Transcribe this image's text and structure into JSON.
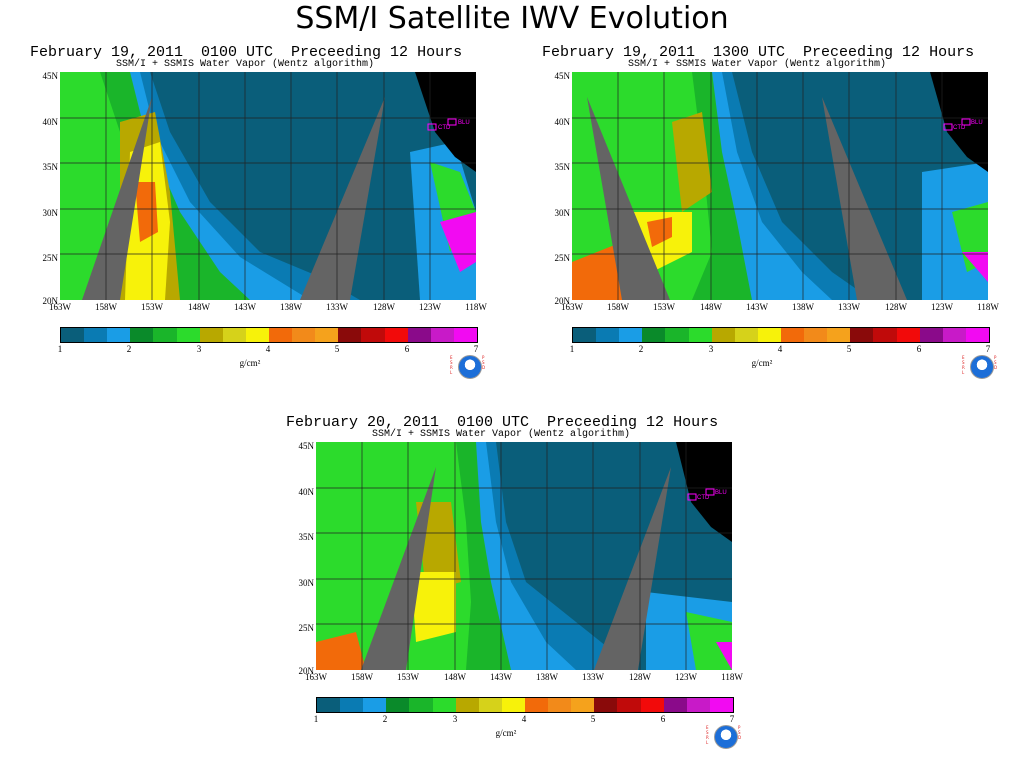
{
  "slide": {
    "title": "SSM/I Satellite IWV Evolution"
  },
  "subtitle": "SSM/I + SSMIS Water Vapor (Wentz algorithm)",
  "lat_labels": [
    "45N",
    "40N",
    "35N",
    "30N",
    "25N",
    "20N"
  ],
  "lon_labels": [
    "163W",
    "158W",
    "153W",
    "148W",
    "143W",
    "138W",
    "133W",
    "128W",
    "123W",
    "118W"
  ],
  "colorbar": {
    "colors": [
      "#0a5e7a",
      "#0a7bb3",
      "#1a9de6",
      "#0a8a2a",
      "#1ab52a",
      "#2cdb2c",
      "#b8a800",
      "#d6d21a",
      "#f7f20a",
      "#f26a0a",
      "#f28a1a",
      "#f5a21c",
      "#8a0a0a",
      "#c00a0a",
      "#f20a0a",
      "#8a0a8a",
      "#c81ac8",
      "#f20af2"
    ],
    "ticks": [
      "1",
      "2",
      "3",
      "4",
      "5",
      "6",
      "7"
    ],
    "unit": "g/cm²"
  },
  "noaa_letters_left": "E\nS\nR\nL",
  "noaa_letters_right": "P\nS\nD",
  "site_labels": {
    "ctd": "CTD",
    "blu": "BLU"
  },
  "panels": [
    {
      "id": "p1",
      "title": "February 19, 2011  0100 UTC  Preceeding 12 Hours"
    },
    {
      "id": "p2",
      "title": "February 19, 2011  1300 UTC  Preceeding 12 Hours"
    },
    {
      "id": "p3",
      "title": "February 20, 2011  0100 UTC  Preceeding 12 Hours"
    }
  ]
}
